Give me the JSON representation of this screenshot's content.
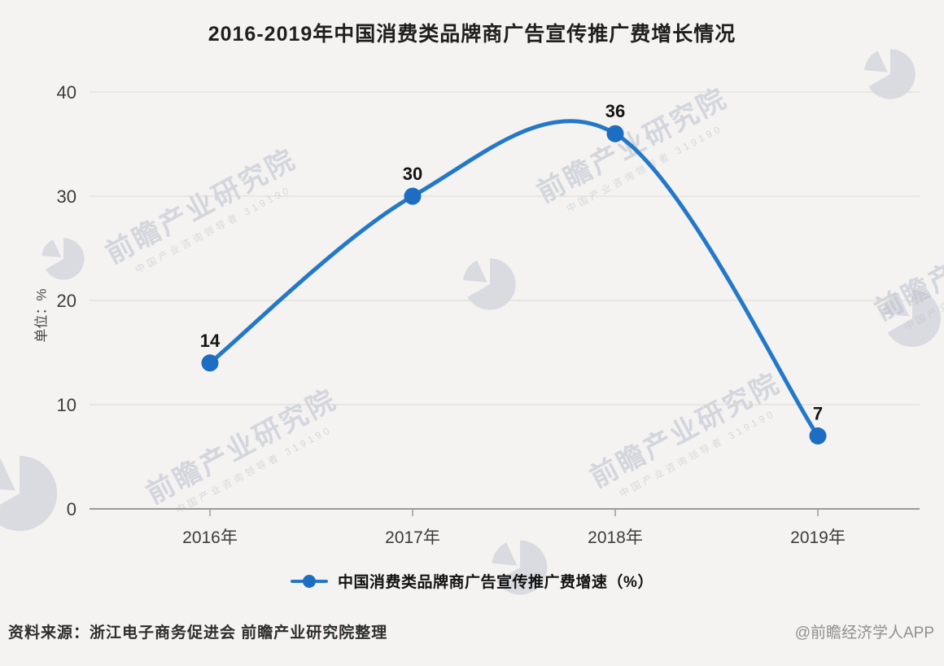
{
  "title": "2016-2019年中国消费类品牌商广告宣传推广费增长情况",
  "chart_data": {
    "type": "line",
    "categories": [
      "2016年",
      "2017年",
      "2018年",
      "2019年"
    ],
    "series": [
      {
        "name": "中国消费类品牌商广告宣传推广费增速（%）",
        "values": [
          14,
          30,
          36,
          7
        ]
      }
    ],
    "title": "2016-2019年中国消费类品牌商广告宣传推广费增长情况",
    "xlabel": "",
    "ylabel": "单位：%",
    "ylim": [
      0,
      40
    ],
    "yticks": [
      0,
      10,
      20,
      30,
      40
    ],
    "grid": true,
    "legend_position": "bottom",
    "line_color": "#2478c8",
    "marker_color": "#1d6ec2"
  },
  "legend": {
    "label": "中国消费类品牌商广告宣传推广费增速（%）"
  },
  "footer": {
    "source": "资料来源：浙江电子商务促进会 前瞻产业研究院整理",
    "credit": "@前瞻经济学人APP"
  },
  "watermark": {
    "main": "前瞻产业研究院",
    "sub": "中国产业咨询领导者 319190"
  }
}
